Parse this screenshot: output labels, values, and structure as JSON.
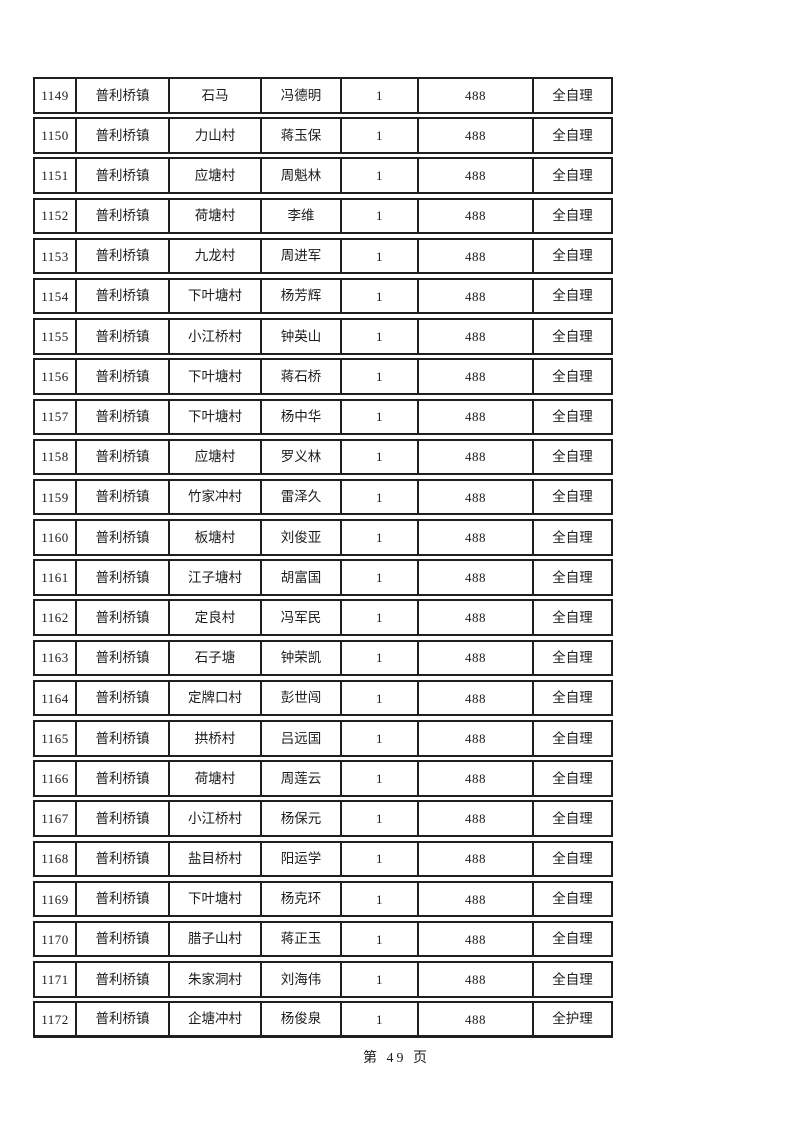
{
  "colors": {
    "background": "#ffffff",
    "border": "#1f1f1f",
    "text": "#1c1c1c"
  },
  "footer": {
    "page_label": "第 49 页"
  },
  "table": {
    "rows": [
      {
        "seq": "1149",
        "town": "普利桥镇",
        "village": "石马",
        "name": "冯德明",
        "count": "1",
        "amount": "488",
        "care": "全自理"
      },
      {
        "seq": "1150",
        "town": "普利桥镇",
        "village": "力山村",
        "name": "蒋玉保",
        "count": "1",
        "amount": "488",
        "care": "全自理"
      },
      {
        "seq": "1151",
        "town": "普利桥镇",
        "village": "应塘村",
        "name": "周魁林",
        "count": "1",
        "amount": "488",
        "care": "全自理"
      },
      {
        "seq": "1152",
        "town": "普利桥镇",
        "village": "荷塘村",
        "name": "李维",
        "count": "1",
        "amount": "488",
        "care": "全自理"
      },
      {
        "seq": "1153",
        "town": "普利桥镇",
        "village": "九龙村",
        "name": "周进军",
        "count": "1",
        "amount": "488",
        "care": "全自理"
      },
      {
        "seq": "1154",
        "town": "普利桥镇",
        "village": "下叶塘村",
        "name": "杨芳辉",
        "count": "1",
        "amount": "488",
        "care": "全自理"
      },
      {
        "seq": "1155",
        "town": "普利桥镇",
        "village": "小江桥村",
        "name": "钟英山",
        "count": "1",
        "amount": "488",
        "care": "全自理"
      },
      {
        "seq": "1156",
        "town": "普利桥镇",
        "village": "下叶塘村",
        "name": "蒋石桥",
        "count": "1",
        "amount": "488",
        "care": "全自理"
      },
      {
        "seq": "1157",
        "town": "普利桥镇",
        "village": "下叶塘村",
        "name": "杨中华",
        "count": "1",
        "amount": "488",
        "care": "全自理"
      },
      {
        "seq": "1158",
        "town": "普利桥镇",
        "village": "应塘村",
        "name": "罗义林",
        "count": "1",
        "amount": "488",
        "care": "全自理"
      },
      {
        "seq": "1159",
        "town": "普利桥镇",
        "village": "竹家冲村",
        "name": "雷泽久",
        "count": "1",
        "amount": "488",
        "care": "全自理"
      },
      {
        "seq": "1160",
        "town": "普利桥镇",
        "village": "板塘村",
        "name": "刘俊亚",
        "count": "1",
        "amount": "488",
        "care": "全自理"
      },
      {
        "seq": "1161",
        "town": "普利桥镇",
        "village": "江子塘村",
        "name": "胡富国",
        "count": "1",
        "amount": "488",
        "care": "全自理"
      },
      {
        "seq": "1162",
        "town": "普利桥镇",
        "village": "定良村",
        "name": "冯军民",
        "count": "1",
        "amount": "488",
        "care": "全自理"
      },
      {
        "seq": "1163",
        "town": "普利桥镇",
        "village": "石子塘",
        "name": "钟荣凯",
        "count": "1",
        "amount": "488",
        "care": "全自理"
      },
      {
        "seq": "1164",
        "town": "普利桥镇",
        "village": "定牌口村",
        "name": "彭世闯",
        "count": "1",
        "amount": "488",
        "care": "全自理"
      },
      {
        "seq": "1165",
        "town": "普利桥镇",
        "village": "拱桥村",
        "name": "吕远国",
        "count": "1",
        "amount": "488",
        "care": "全自理"
      },
      {
        "seq": "1166",
        "town": "普利桥镇",
        "village": "荷塘村",
        "name": "周莲云",
        "count": "1",
        "amount": "488",
        "care": "全自理"
      },
      {
        "seq": "1167",
        "town": "普利桥镇",
        "village": "小江桥村",
        "name": "杨保元",
        "count": "1",
        "amount": "488",
        "care": "全自理"
      },
      {
        "seq": "1168",
        "town": "普利桥镇",
        "village": "盐目桥村",
        "name": "阳运学",
        "count": "1",
        "amount": "488",
        "care": "全自理"
      },
      {
        "seq": "1169",
        "town": "普利桥镇",
        "village": "下叶塘村",
        "name": "杨克环",
        "count": "1",
        "amount": "488",
        "care": "全自理"
      },
      {
        "seq": "1170",
        "town": "普利桥镇",
        "village": "腊子山村",
        "name": "蒋正玉",
        "count": "1",
        "amount": "488",
        "care": "全自理"
      },
      {
        "seq": "1171",
        "town": "普利桥镇",
        "village": "朱家洞村",
        "name": "刘海伟",
        "count": "1",
        "amount": "488",
        "care": "全自理"
      },
      {
        "seq": "1172",
        "town": "普利桥镇",
        "village": "企塘冲村",
        "name": "杨俊泉",
        "count": "1",
        "amount": "488",
        "care": "全护理"
      }
    ]
  }
}
